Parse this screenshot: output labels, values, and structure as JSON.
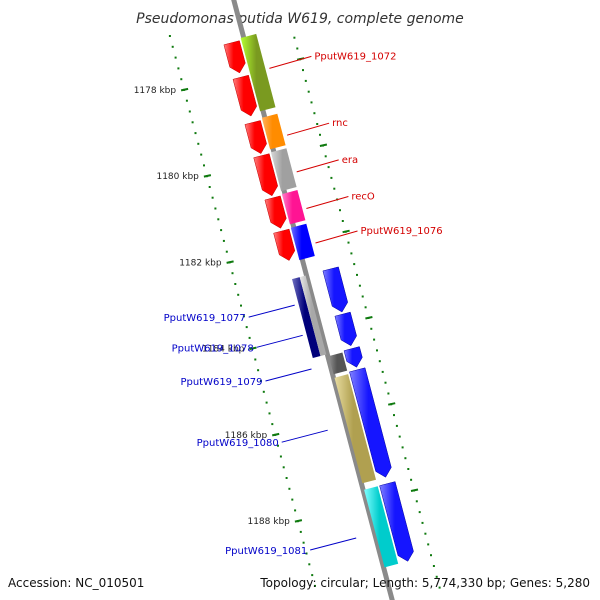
{
  "title": "Pseudomonas putida W619, complete genome",
  "footer": {
    "accession": "Accession: NC_010501",
    "stats": "Topology: circular; Length: 5,774,330 bp; Genes: 5,280"
  },
  "colors": {
    "backbone": "#8a8a8a",
    "tick": "#0f7a0f",
    "label_red": "#d40000",
    "label_blue": "#0000c8"
  },
  "scale": {
    "ticks": [
      {
        "kbp": 1178,
        "label": "1178 kbp"
      },
      {
        "kbp": 1180,
        "label": "1180 kbp"
      },
      {
        "kbp": 1182,
        "label": "1182 kbp"
      },
      {
        "kbp": 1184,
        "label": "1184 kbp"
      },
      {
        "kbp": 1186,
        "label": "1186 kbp"
      },
      {
        "kbp": 1188,
        "label": "1188 kbp"
      }
    ]
  },
  "genes": [
    {
      "name": "gene-a",
      "track": "forward",
      "color": "#ff0000",
      "start_kbp": 1177.25,
      "end_kbp": 1177.95
    },
    {
      "name": "gene-b",
      "track": "forward",
      "color": "#ff0000",
      "start_kbp": 1178.05,
      "end_kbp": 1178.95
    },
    {
      "name": "gene-c",
      "track": "forward",
      "color": "#ff0000",
      "start_kbp": 1179.1,
      "end_kbp": 1179.82
    },
    {
      "name": "gene-d",
      "track": "forward",
      "color": "#ff0000",
      "start_kbp": 1179.87,
      "end_kbp": 1180.8
    },
    {
      "name": "gene-e",
      "track": "forward",
      "color": "#ff0000",
      "start_kbp": 1180.85,
      "end_kbp": 1181.55
    },
    {
      "name": "gene-f",
      "track": "forward",
      "color": "#ff0000",
      "start_kbp": 1181.62,
      "end_kbp": 1182.3
    },
    {
      "name": "gene-g",
      "track": "reverse",
      "color": "#1515ff",
      "start_kbp": 1182.72,
      "end_kbp": 1183.72
    },
    {
      "name": "gene-h",
      "track": "reverse",
      "color": "#1515ff",
      "start_kbp": 1183.77,
      "end_kbp": 1184.5
    },
    {
      "name": "gene-i",
      "track": "reverse",
      "color": "#1515ff",
      "start_kbp": 1184.57,
      "end_kbp": 1185.0
    },
    {
      "name": "gene-j",
      "track": "reverse",
      "color": "#1515ff",
      "start_kbp": 1185.06,
      "end_kbp": 1187.55
    },
    {
      "name": "gene-k",
      "track": "reverse",
      "color": "#1515ff",
      "start_kbp": 1187.7,
      "end_kbp": 1189.5
    }
  ],
  "features": [
    {
      "name": "PputW619_1072",
      "label": "PputW619_1072",
      "side": "right",
      "color": "#7a9a20",
      "light": "#b5ff30",
      "start_kbp": 1177.2,
      "end_kbp": 1178.9,
      "label_kbp": 1177.35
    },
    {
      "name": "rnc",
      "label": "rnc",
      "side": "right",
      "color": "#ff8c00",
      "light": "#ffb060",
      "start_kbp": 1179.05,
      "end_kbp": 1179.78,
      "label_kbp": 1178.9
    },
    {
      "name": "era",
      "label": "era",
      "side": "right",
      "color": "#a0a0a0",
      "light": "#d8d8d8",
      "start_kbp": 1179.85,
      "end_kbp": 1180.75,
      "label_kbp": 1179.75
    },
    {
      "name": "recO",
      "label": "recO",
      "side": "right",
      "color": "#ff1493",
      "light": "#ff80c8",
      "start_kbp": 1180.82,
      "end_kbp": 1181.52,
      "label_kbp": 1180.6
    },
    {
      "name": "PputW619_1076",
      "label": "PputW619_1076",
      "side": "right",
      "color": "#0000ff",
      "light": "#7070ff",
      "start_kbp": 1181.6,
      "end_kbp": 1182.35,
      "label_kbp": 1181.4
    },
    {
      "name": "PputW619_1077",
      "label": "PputW619_1077",
      "side": "left",
      "color": "#00007a",
      "light": "#7070c0",
      "start_kbp": 1182.72,
      "end_kbp": 1184.55,
      "label_kbp": 1183.3
    },
    {
      "name": "PputW619_1078",
      "label": "PputW619_1078",
      "side": "left",
      "color": "#a8a8a8",
      "light": "#e8e8e8",
      "start_kbp": 1182.72,
      "end_kbp": 1184.55,
      "label_kbp": 1184.0
    },
    {
      "name": "PputW619_1079",
      "label": "PputW619_1079",
      "side": "left",
      "color": "#555555",
      "light": "#909090",
      "start_kbp": 1184.6,
      "end_kbp": 1185.02,
      "label_kbp": 1184.78
    },
    {
      "name": "PputW619_1080",
      "label": "PputW619_1080",
      "side": "left",
      "color": "#b0a050",
      "light": "#e8dca0",
      "start_kbp": 1185.1,
      "end_kbp": 1187.55,
      "label_kbp": 1186.2
    },
    {
      "name": "PputW619_1081",
      "label": "PputW619_1081",
      "side": "left",
      "color": "#00cccc",
      "light": "#80ffff",
      "start_kbp": 1187.7,
      "end_kbp": 1189.5,
      "label_kbp": 1188.7
    }
  ]
}
